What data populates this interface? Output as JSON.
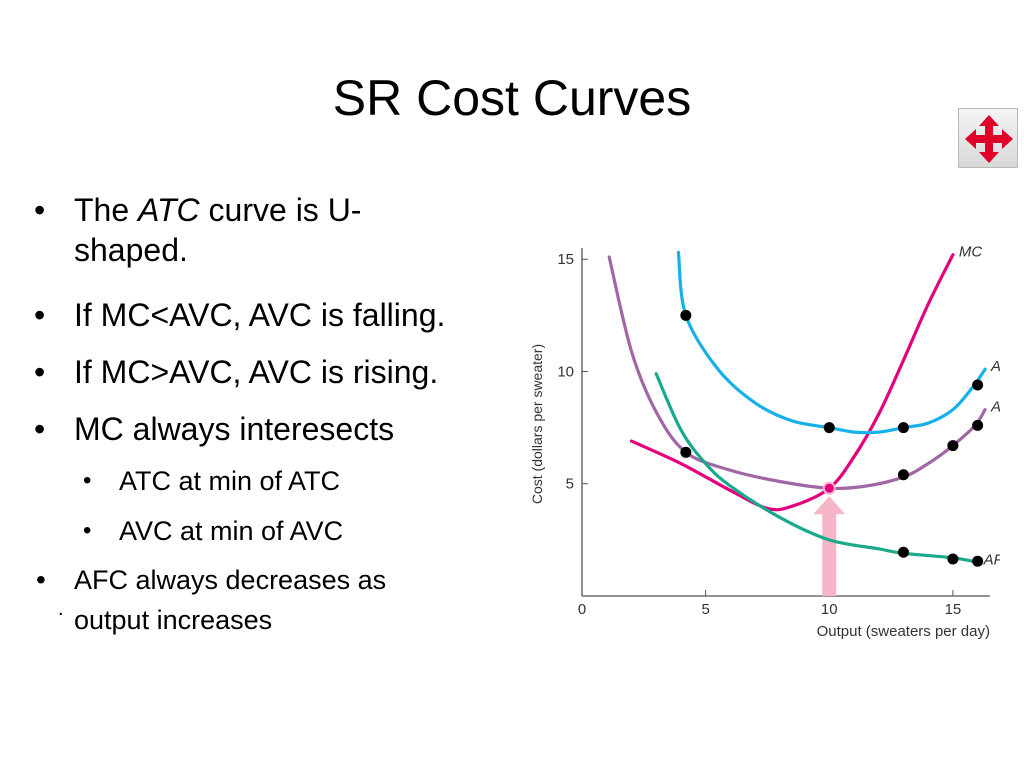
{
  "slide": {
    "title": "SR Cost Curves",
    "bullet_symbol": "•",
    "bullets": [
      {
        "parts": [
          "The ",
          "ATC",
          " curve is U-"
        ],
        "continuation": "shaped."
      },
      {
        "text": "If MC<AVC, AVC is falling."
      },
      {
        "text": "If MC>AVC, AVC is rising."
      },
      {
        "text": "MC always interesects"
      }
    ],
    "sub_bullets": [
      "ATC at min of ATC",
      "AVC at min of AVC"
    ],
    "last_bullet": [
      "AFC always decreases as",
      "output increases"
    ],
    "stray_mark": "."
  },
  "nav_button": {
    "icon": "four-way-arrows-icon",
    "color": "#e0002a"
  },
  "chart_data": {
    "type": "line",
    "xlabel": "Output (sweaters per day)",
    "ylabel": "Cost (dollars per sweater)",
    "xlim": [
      0,
      16.5
    ],
    "ylim": [
      0,
      15.5
    ],
    "x_ticks": [
      0,
      5,
      10,
      15
    ],
    "y_ticks": [
      5,
      10,
      15
    ],
    "grid": false,
    "series": [
      {
        "name": "MC",
        "color": "#e4007c",
        "points": [
          [
            2,
            6.9
          ],
          [
            4,
            5.9
          ],
          [
            6,
            4.7
          ],
          [
            7.5,
            3.9
          ],
          [
            8.5,
            4.0
          ],
          [
            10,
            4.8
          ],
          [
            11,
            6.2
          ],
          [
            12,
            8.1
          ],
          [
            13,
            10.5
          ],
          [
            14,
            13.0
          ],
          [
            15,
            15.2
          ]
        ]
      },
      {
        "name": "ATC",
        "color": "#18b0e8",
        "points": [
          [
            3.9,
            15.3
          ],
          [
            4.2,
            12.5
          ],
          [
            5.5,
            10.1
          ],
          [
            7,
            8.6
          ],
          [
            8.5,
            7.8
          ],
          [
            10,
            7.5
          ],
          [
            11,
            7.3
          ],
          [
            12,
            7.3
          ],
          [
            13,
            7.5
          ],
          [
            14,
            7.7
          ],
          [
            15,
            8.3
          ],
          [
            15.8,
            9.3
          ],
          [
            16.3,
            10.1
          ]
        ]
      },
      {
        "name": "AVC",
        "color": "#a066a6",
        "points": [
          [
            1.1,
            15.1
          ],
          [
            2,
            10.9
          ],
          [
            3,
            8.2
          ],
          [
            4.2,
            6.4
          ],
          [
            6,
            5.6
          ],
          [
            8,
            5.1
          ],
          [
            10,
            4.8
          ],
          [
            11.5,
            4.9
          ],
          [
            13,
            5.3
          ],
          [
            14,
            5.9
          ],
          [
            15,
            6.7
          ],
          [
            15.9,
            7.6
          ],
          [
            16.3,
            8.3
          ]
        ]
      },
      {
        "name": "AFC",
        "color": "#1aa98c",
        "points": [
          [
            3,
            9.9
          ],
          [
            4,
            7.4
          ],
          [
            5,
            5.9
          ],
          [
            6,
            4.9
          ],
          [
            8,
            3.5
          ],
          [
            10,
            2.5
          ],
          [
            12,
            2.1
          ],
          [
            13,
            1.9
          ],
          [
            15,
            1.7
          ],
          [
            16,
            1.5
          ]
        ]
      }
    ],
    "markers": [
      [
        4.2,
        12.5
      ],
      [
        10,
        7.5
      ],
      [
        13,
        7.5
      ],
      [
        16,
        9.4
      ],
      [
        4.2,
        6.4
      ],
      [
        13,
        5.4
      ],
      [
        15,
        6.7
      ],
      [
        16,
        7.6
      ],
      [
        13,
        1.95
      ],
      [
        15,
        1.65
      ],
      [
        16,
        1.55
      ]
    ],
    "highlight": {
      "x": 10,
      "y": 4.8,
      "color": "#f7b6c8"
    }
  }
}
